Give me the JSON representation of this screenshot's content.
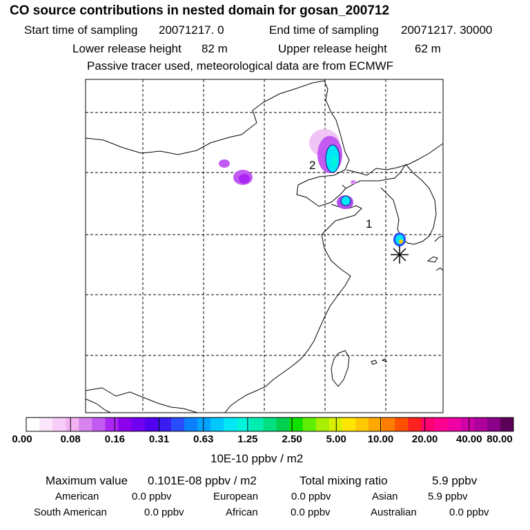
{
  "header": {
    "title": "CO  source contributions in nested domain for gosan_200712",
    "start_label": "Start time of sampling",
    "start_value": "20071217.      0",
    "end_label": "End time of sampling",
    "end_value": "20071217. 30000",
    "lower_label": "Lower release height",
    "lower_value": "82 m",
    "upper_label": "Upper release height",
    "upper_value": "62 m",
    "note": "Passive tracer used, meteorological data are from ECMWF"
  },
  "map": {
    "labels": [
      "2",
      "1"
    ],
    "station_marker": "asterisk-icon"
  },
  "legend": {
    "colors": [
      "#ffffff",
      "#fbe6fb",
      "#f8ccf8",
      "#f3b3f3",
      "#d884f0",
      "#c25af2",
      "#a925f2",
      "#8d00ee",
      "#7000f0",
      "#5000ee",
      "#3a1bf0",
      "#2a4cff",
      "#0a7fff",
      "#00a4ff",
      "#00c8ff",
      "#00e8f5",
      "#00f5dd",
      "#00eeb0",
      "#00e080",
      "#00d050",
      "#10e000",
      "#60ee00",
      "#a8f000",
      "#d8f000",
      "#ffe600",
      "#ffc800",
      "#ffa800",
      "#ff7d00",
      "#ff5000",
      "#ff2020",
      "#ff0070",
      "#ff0090",
      "#ee00a5",
      "#d000a8",
      "#b0009c",
      "#8a0088",
      "#5a0058"
    ],
    "ticks": [
      "0.00",
      "0.08",
      "0.16",
      "0.31",
      "0.63",
      "1.25",
      "2.50",
      "5.00",
      "10.00",
      "20.00",
      "40.00",
      "80.00"
    ],
    "unit": "10E-10 ppbv / m2"
  },
  "stats": {
    "max_label": "Maximum value",
    "max_value": "0.101E-08 ppbv / m2",
    "total_label": "Total mixing ratio",
    "total_value": "5.9 ppbv"
  },
  "regions": [
    {
      "name": "American",
      "value": "0.0 ppbv"
    },
    {
      "name": "European",
      "value": "0.0 ppbv"
    },
    {
      "name": "Asian",
      "value": "5.9 ppbv"
    },
    {
      "name": "South American",
      "value": "0.0 ppbv"
    },
    {
      "name": "African",
      "value": "0.0 ppbv"
    },
    {
      "name": "Australian",
      "value": "0.0 ppbv"
    }
  ]
}
